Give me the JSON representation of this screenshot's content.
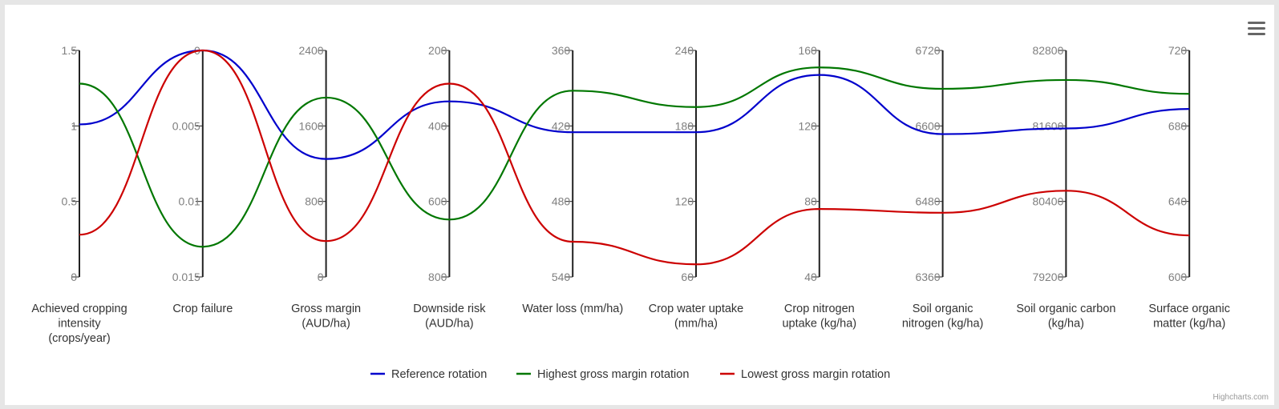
{
  "chart_data": {
    "type": "line",
    "variant": "parallel-coordinates",
    "title": "",
    "credit": "Highcharts.com",
    "axes": [
      {
        "label": [
          "Achieved cropping",
          "intensity",
          "(crops/year)"
        ],
        "min": 0,
        "max": 1.5,
        "reversed": false,
        "ticks": [
          0,
          0.5,
          1,
          1.5
        ],
        "tick_labels": [
          "0",
          "0.5",
          "1",
          "1.5"
        ]
      },
      {
        "label": [
          "Crop failure"
        ],
        "min": 0,
        "max": 0.015,
        "reversed": true,
        "ticks": [
          0,
          0.005,
          0.01,
          0.015
        ],
        "tick_labels": [
          "0",
          "0.005",
          "0.01",
          "0.015"
        ]
      },
      {
        "label": [
          "Gross margin",
          "(AUD/ha)"
        ],
        "min": 0,
        "max": 2400,
        "reversed": false,
        "ticks": [
          0,
          800,
          1600,
          2400
        ],
        "tick_labels": [
          "0",
          "800",
          "1600",
          "2400"
        ]
      },
      {
        "label": [
          "Downside risk",
          "(AUD/ha)"
        ],
        "min": 200,
        "max": 800,
        "reversed": true,
        "ticks": [
          200,
          400,
          600,
          800
        ],
        "tick_labels": [
          "200",
          "400",
          "600",
          "800"
        ]
      },
      {
        "label": [
          "Water loss (mm/ha)"
        ],
        "min": 360,
        "max": 540,
        "reversed": true,
        "ticks": [
          360,
          420,
          480,
          540
        ],
        "tick_labels": [
          "360",
          "420",
          "480",
          "540"
        ]
      },
      {
        "label": [
          "Crop water uptake",
          "(mm/ha)"
        ],
        "min": 60,
        "max": 240,
        "reversed": false,
        "ticks": [
          60,
          120,
          180,
          240
        ],
        "tick_labels": [
          "60",
          "120",
          "180",
          "240"
        ]
      },
      {
        "label": [
          "Crop nitrogen",
          "uptake (kg/ha)"
        ],
        "min": 40,
        "max": 160,
        "reversed": false,
        "ticks": [
          40,
          80,
          120,
          160
        ],
        "tick_labels": [
          "40",
          "80",
          "120",
          "160"
        ]
      },
      {
        "label": [
          "Soil organic",
          "nitrogen (kg/ha)"
        ],
        "min": 6360,
        "max": 6720,
        "reversed": false,
        "ticks": [
          6360,
          6480,
          6600,
          6720
        ],
        "tick_labels": [
          "6360",
          "6480",
          "6600",
          "6720"
        ]
      },
      {
        "label": [
          "Soil organic carbon",
          "(kg/ha)"
        ],
        "min": 79200,
        "max": 82800,
        "reversed": false,
        "ticks": [
          79200,
          80400,
          81600,
          82800
        ],
        "tick_labels": [
          "79200",
          "80400",
          "81600",
          "82800"
        ]
      },
      {
        "label": [
          "Surface organic",
          "matter (kg/ha)"
        ],
        "min": 600,
        "max": 720,
        "reversed": false,
        "ticks": [
          600,
          640,
          680,
          720
        ],
        "tick_labels": [
          "600",
          "640",
          "680",
          "720"
        ]
      }
    ],
    "series": [
      {
        "name": "Reference rotation",
        "color": "#0000cc",
        "values": [
          1.01,
          0.0,
          1250,
          335,
          425,
          175,
          147,
          6587,
          81560,
          689
        ]
      },
      {
        "name": "Highest gross margin rotation",
        "color": "#007700",
        "values": [
          1.28,
          0.013,
          1900,
          648,
          392,
          195,
          151,
          6659,
          82330,
          697
        ]
      },
      {
        "name": "Lowest gross margin rotation",
        "color": "#cc0000",
        "values": [
          0.28,
          0.0,
          380,
          288,
          512,
          70,
          76,
          6462,
          80570,
          622
        ]
      }
    ]
  }
}
